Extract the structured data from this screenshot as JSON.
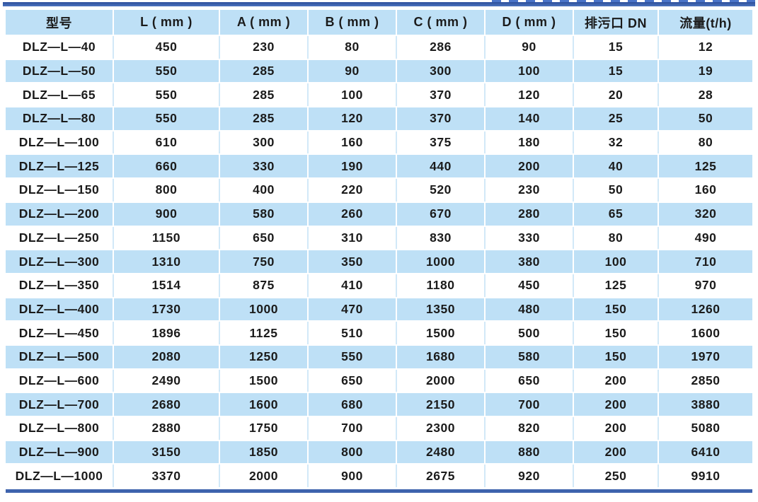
{
  "table": {
    "columns": [
      "型号",
      "L ( mm )",
      "A ( mm )",
      "B ( mm )",
      "C ( mm )",
      "D ( mm )",
      "排污口 DN",
      "流量(t/h)"
    ],
    "rows": [
      [
        "DLZ—L—40",
        "450",
        "230",
        "80",
        "286",
        "90",
        "15",
        "12"
      ],
      [
        "DLZ—L—50",
        "550",
        "285",
        "90",
        "300",
        "100",
        "15",
        "19"
      ],
      [
        "DLZ—L—65",
        "550",
        "285",
        "100",
        "370",
        "120",
        "20",
        "28"
      ],
      [
        "DLZ—L—80",
        "550",
        "285",
        "120",
        "370",
        "140",
        "25",
        "50"
      ],
      [
        "DLZ—L—100",
        "610",
        "300",
        "160",
        "375",
        "180",
        "32",
        "80"
      ],
      [
        "DLZ—L—125",
        "660",
        "330",
        "190",
        "440",
        "200",
        "40",
        "125"
      ],
      [
        "DLZ—L—150",
        "800",
        "400",
        "220",
        "520",
        "230",
        "50",
        "160"
      ],
      [
        "DLZ—L—200",
        "900",
        "580",
        "260",
        "670",
        "280",
        "65",
        "320"
      ],
      [
        "DLZ—L—250",
        "1150",
        "650",
        "310",
        "830",
        "330",
        "80",
        "490"
      ],
      [
        "DLZ—L—300",
        "1310",
        "750",
        "350",
        "1000",
        "380",
        "100",
        "710"
      ],
      [
        "DLZ—L—350",
        "1514",
        "875",
        "410",
        "1180",
        "450",
        "125",
        "970"
      ],
      [
        "DLZ—L—400",
        "1730",
        "1000",
        "470",
        "1350",
        "480",
        "150",
        "1260"
      ],
      [
        "DLZ—L—450",
        "1896",
        "1125",
        "510",
        "1500",
        "500",
        "150",
        "1600"
      ],
      [
        "DLZ—L—500",
        "2080",
        "1250",
        "550",
        "1680",
        "580",
        "150",
        "1970"
      ],
      [
        "DLZ—L—600",
        "2490",
        "1500",
        "650",
        "2000",
        "650",
        "200",
        "2850"
      ],
      [
        "DLZ—L—700",
        "2680",
        "1600",
        "680",
        "2150",
        "700",
        "200",
        "3880"
      ],
      [
        "DLZ—L—800",
        "2880",
        "1750",
        "700",
        "2300",
        "820",
        "200",
        "5080"
      ],
      [
        "DLZ—L—900",
        "3150",
        "1850",
        "800",
        "2480",
        "880",
        "200",
        "6410"
      ],
      [
        "DLZ—L—1000",
        "3370",
        "2000",
        "900",
        "2675",
        "920",
        "250",
        "9910"
      ]
    ]
  },
  "colors": {
    "stripe_blue": "#bee0f6",
    "rule_navy": "#3e63ad",
    "text": "#1b1b1b",
    "separator_on_white": "#d2e9f8"
  }
}
